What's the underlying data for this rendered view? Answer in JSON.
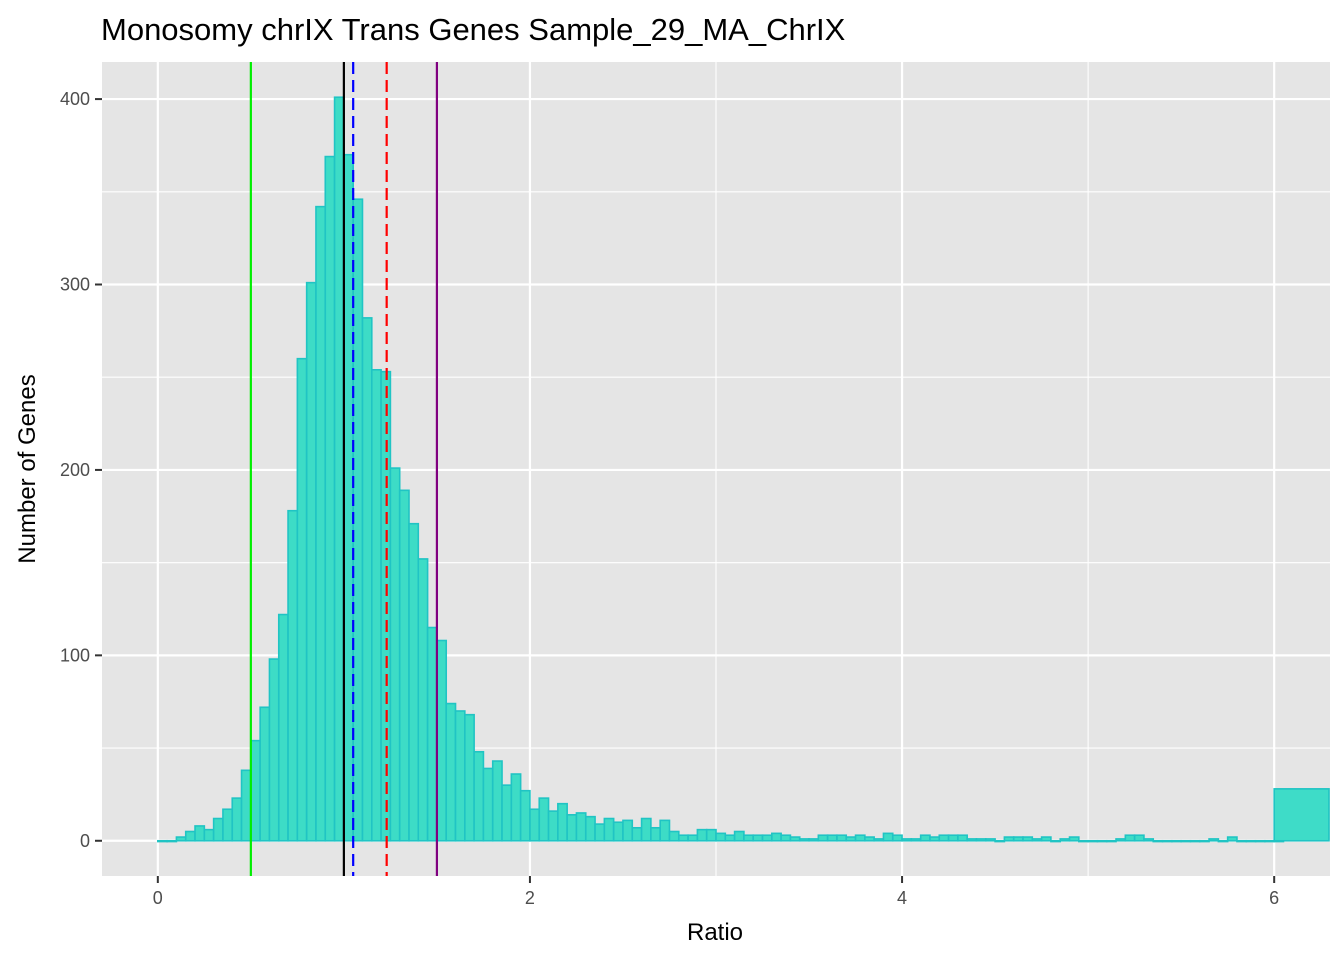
{
  "chart_data": {
    "type": "bar",
    "title": "Monosomy chrIX Trans Genes Sample_29_MA_ChrIX",
    "xlabel": "Ratio",
    "ylabel": "Number of Genes",
    "xlim": [
      -0.3,
      6.3
    ],
    "ylim": [
      -19,
      420
    ],
    "x_ticks": [
      0,
      2,
      4,
      6
    ],
    "x_tick_labels": [
      "0",
      "2",
      "4",
      "6"
    ],
    "y_ticks": [
      0,
      100,
      200,
      300,
      400
    ],
    "y_tick_labels": [
      "0",
      "100",
      "200",
      "300",
      "400"
    ],
    "grid": true,
    "bin_width": 0.05,
    "bins_start": 0,
    "values": [
      0,
      0,
      2,
      5,
      8,
      6,
      12,
      17,
      23,
      38,
      54,
      72,
      98,
      122,
      178,
      260,
      301,
      342,
      369,
      401,
      370,
      346,
      282,
      254,
      253,
      201,
      189,
      171,
      152,
      115,
      108,
      74,
      70,
      68,
      48,
      39,
      43,
      30,
      36,
      27,
      17,
      23,
      16,
      20,
      14,
      15,
      13,
      9,
      12,
      10,
      11,
      7,
      12,
      7,
      11,
      5,
      3,
      3,
      6,
      6,
      4,
      3,
      5,
      3,
      3,
      3,
      4,
      3,
      2,
      1,
      1,
      3,
      3,
      3,
      2,
      3,
      2,
      1,
      4,
      3,
      1,
      1,
      3,
      2,
      3,
      3,
      3,
      1,
      1,
      1,
      0,
      2,
      2,
      2,
      1,
      2,
      0,
      1,
      2,
      0,
      0,
      0,
      0,
      1,
      3,
      3,
      1,
      0,
      0,
      0,
      0,
      0,
      0,
      1,
      0,
      2,
      0,
      0,
      0,
      0,
      0
    ],
    "overflow_bin": {
      "x_start": 6.0,
      "x_end": 6.3,
      "value": 28
    },
    "bar_fill": "#3ddcc6",
    "bar_outline": "#20c4c4",
    "overflow_fill": "#3edcc8",
    "reference_lines": [
      {
        "x": 0.5,
        "color": "#00ee00",
        "style": "solid"
      },
      {
        "x": 1.0,
        "color": "#000000",
        "style": "solid"
      },
      {
        "x": 1.05,
        "color": "#0000ff",
        "style": "dashed"
      },
      {
        "x": 1.23,
        "color": "#ff0000",
        "style": "dashed"
      },
      {
        "x": 1.5,
        "color": "#800080",
        "style": "solid"
      }
    ],
    "panel_background": "#e5e5e5",
    "grid_color": "#ffffff"
  }
}
